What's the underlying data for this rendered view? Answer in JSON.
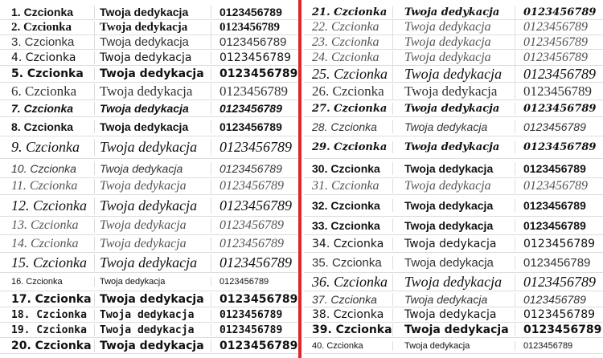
{
  "colors": {
    "accent": "#e0262b",
    "grid": "#dddddd",
    "text": "#111111"
  },
  "left_rows": [
    {
      "name": "1. Czcionka",
      "dedication": "Twoja dedykacja",
      "digits": "0123456789"
    },
    {
      "name": "2. Czcionka",
      "dedication": "Twoja dedykacja",
      "digits": "0123456789"
    },
    {
      "name": "3. Czcionka",
      "dedication": "Twoja dedykacja",
      "digits": "0123456789"
    },
    {
      "name": "4. Czcionka",
      "dedication": "Twoja dedykacja",
      "digits": "0123456789"
    },
    {
      "name": "5. Czcionka",
      "dedication": "Twoja dedykacja",
      "digits": "0123456789"
    },
    {
      "name": "6. Czcionka",
      "dedication": "Twoja dedykacja",
      "digits": "0123456789"
    },
    {
      "name": "7. Czcionka",
      "dedication": "Twoja dedykacja",
      "digits": "0123456789"
    },
    {
      "name": "8. Czcionka",
      "dedication": "Twoja dedykacja",
      "digits": "0123456789"
    },
    {
      "name": "9. Czcionka",
      "dedication": "Twoja dedykacja",
      "digits": "0123456789"
    },
    {
      "name": "10. Czcionka",
      "dedication": "Twoja dedykacja",
      "digits": "0123456789"
    },
    {
      "name": "11. Czcionka",
      "dedication": "Twoja dedykacja",
      "digits": "0123456789"
    },
    {
      "name": "12. Czcionka",
      "dedication": "Twoja dedykacja",
      "digits": "0123456789"
    },
    {
      "name": "13. Czcionka",
      "dedication": "Twoja dedykacja",
      "digits": "0123456789"
    },
    {
      "name": "14. Czcionka",
      "dedication": "Twoja dedykacja",
      "digits": "0123456789"
    },
    {
      "name": "15. Czcionka",
      "dedication": "Twoja dedykacja",
      "digits": "0123456789"
    },
    {
      "name": "16. Czcionka",
      "dedication": "Twoja dedykacja",
      "digits": "0123456789"
    },
    {
      "name": "17. Czcionka",
      "dedication": "Twoja dedykacja",
      "digits": "0123456789"
    },
    {
      "name": "18. Czcionka",
      "dedication": "Twoja dedykacja",
      "digits": "0123456789"
    },
    {
      "name": "19. Czcionka",
      "dedication": "Twoja dedykacja",
      "digits": "0123456789"
    },
    {
      "name": "20. Czcionka",
      "dedication": "Twoja dedykacja",
      "digits": "0123456789"
    }
  ],
  "right_rows": [
    {
      "name": "21. Czcionka",
      "dedication": "Twoja dedykacja",
      "digits": "0123456789"
    },
    {
      "name": "22. Czcionka",
      "dedication": "Twoja dedykacja",
      "digits": "0123456789"
    },
    {
      "name": "23. Czcionka",
      "dedication": "Twoja dedykacja",
      "digits": "0123456789"
    },
    {
      "name": "24. Czcionka",
      "dedication": "Twoja dedykacja",
      "digits": "0123456789"
    },
    {
      "name": "25. Czcionka",
      "dedication": "Twoja dedykacja",
      "digits": "0123456789"
    },
    {
      "name": "26. Czcionka",
      "dedication": "Twoja dedykacja",
      "digits": "0123456789"
    },
    {
      "name": "27. Czcionka",
      "dedication": "Twoja dedykacja",
      "digits": "0123456789"
    },
    {
      "name": "28. Czcionka",
      "dedication": "Twoja dedykacja",
      "digits": "0123456789"
    },
    {
      "name": "29. Czcionka",
      "dedication": "Twoja dedykacja",
      "digits": "0123456789"
    },
    {
      "name": "30. Czcionka",
      "dedication": "Twoja dedykacja",
      "digits": "0123456789"
    },
    {
      "name": "31. Czcionka",
      "dedication": "Twoja dedykacja",
      "digits": "0123456789"
    },
    {
      "name": "32. Czcionka",
      "dedication": "Twoja dedykacja",
      "digits": "0123456789"
    },
    {
      "name": "33. Czcionka",
      "dedication": "Twoja dedykacja",
      "digits": "0123456789"
    },
    {
      "name": "34. Czcionka",
      "dedication": "Twoja dedykacja",
      "digits": "0123456789"
    },
    {
      "name": "35. Czcionka",
      "dedication": "Twoja dedykacja",
      "digits": "0123456789"
    },
    {
      "name": "36. Czcionka",
      "dedication": "Twoja dedykacja",
      "digits": "0123456789"
    },
    {
      "name": "37. Czcionka",
      "dedication": "Twoja dedykacja",
      "digits": "0123456789"
    },
    {
      "name": "38. Czcionka",
      "dedication": "Twoja dedykacja",
      "digits": "0123456789"
    },
    {
      "name": "39. Czcionka",
      "dedication": "Twoja dedykacja",
      "digits": "0123456789"
    },
    {
      "name": "40. Czcionka",
      "dedication": "Twoja dedykacja",
      "digits": "0123456789"
    }
  ]
}
